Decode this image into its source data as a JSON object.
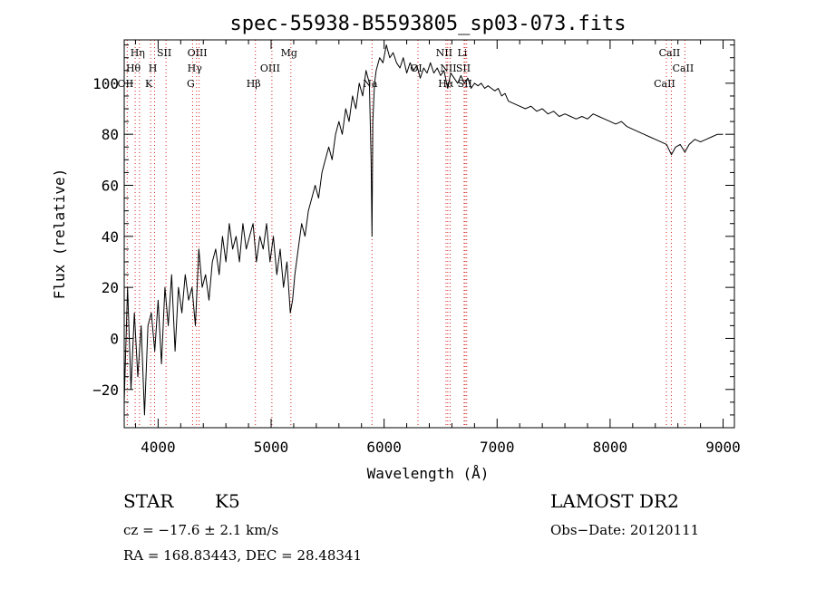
{
  "chart_data": {
    "type": "line",
    "title": "spec-55938-B5593805_sp03-073.fits",
    "xlabel": "Wavelength (Å)",
    "ylabel": "Flux (relative)",
    "xlim": [
      3700,
      9100
    ],
    "ylim": [
      -35,
      117
    ],
    "x_ticks": [
      4000,
      5000,
      6000,
      7000,
      8000,
      9000
    ],
    "y_ticks": [
      -20,
      0,
      20,
      40,
      60,
      80,
      100
    ],
    "grid": false,
    "line_color": "#000000",
    "marker_color": "#d62020",
    "series": [
      {
        "x": [
          3700,
          3730,
          3760,
          3790,
          3820,
          3850,
          3880,
          3910,
          3940,
          3970,
          4000,
          4030,
          4060,
          4090,
          4120,
          4150,
          4180,
          4210,
          4240,
          4270,
          4300,
          4330,
          4360,
          4390,
          4420,
          4450,
          4480,
          4510,
          4540,
          4570,
          4600,
          4630,
          4660,
          4690,
          4720,
          4750,
          4780,
          4810,
          4840,
          4870,
          4900,
          4930,
          4960,
          4990,
          5020,
          5050,
          5080,
          5110,
          5140,
          5170,
          5190,
          5210,
          5240,
          5270,
          5300,
          5330,
          5360,
          5390,
          5420,
          5450,
          5480,
          5510,
          5540,
          5570,
          5600,
          5630,
          5660,
          5690,
          5720,
          5750,
          5780,
          5810,
          5840,
          5870,
          5885,
          5893,
          5900,
          5915,
          5930,
          5960,
          5990,
          6020,
          6050,
          6080,
          6110,
          6140,
          6170,
          6200,
          6230,
          6260,
          6290,
          6320,
          6350,
          6380,
          6410,
          6440,
          6470,
          6500,
          6530,
          6563,
          6590,
          6620,
          6650,
          6680,
          6710,
          6740,
          6770,
          6800,
          6830,
          6860,
          6890,
          6920,
          6950,
          6980,
          7010,
          7040,
          7070,
          7100,
          7150,
          7200,
          7250,
          7300,
          7350,
          7400,
          7450,
          7500,
          7550,
          7600,
          7650,
          7700,
          7750,
          7800,
          7850,
          7900,
          7950,
          8000,
          8050,
          8100,
          8150,
          8200,
          8250,
          8300,
          8350,
          8400,
          8450,
          8500,
          8542,
          8580,
          8620,
          8662,
          8700,
          8750,
          8800,
          8850,
          8900,
          8950,
          9000
        ],
        "y": [
          -25,
          20,
          -20,
          10,
          -15,
          5,
          -30,
          5,
          10,
          -5,
          15,
          -10,
          20,
          5,
          25,
          -5,
          20,
          10,
          25,
          15,
          20,
          5,
          35,
          20,
          25,
          15,
          30,
          35,
          25,
          40,
          30,
          45,
          35,
          40,
          30,
          45,
          35,
          40,
          45,
          30,
          40,
          35,
          45,
          30,
          40,
          25,
          35,
          20,
          30,
          10,
          15,
          25,
          35,
          45,
          40,
          50,
          55,
          60,
          55,
          65,
          70,
          75,
          70,
          80,
          85,
          80,
          90,
          85,
          95,
          90,
          100,
          95,
          105,
          100,
          70,
          40,
          85,
          100,
          105,
          110,
          108,
          115,
          110,
          112,
          108,
          106,
          110,
          104,
          108,
          105,
          107,
          102,
          106,
          104,
          108,
          104,
          106,
          103,
          105,
          98,
          104,
          102,
          100,
          103,
          100,
          102,
          98,
          100,
          99,
          100,
          98,
          99,
          98,
          97,
          98,
          95,
          96,
          93,
          92,
          91,
          90,
          91,
          89,
          90,
          88,
          89,
          87,
          88,
          87,
          86,
          87,
          86,
          88,
          87,
          86,
          85,
          84,
          85,
          83,
          82,
          81,
          80,
          79,
          78,
          77,
          76,
          72,
          75,
          76,
          73,
          76,
          78,
          77,
          78,
          79,
          80,
          80
        ]
      }
    ],
    "lines": [
      {
        "label": "Hη",
        "x": 3835,
        "row": 0
      },
      {
        "label": "Hθ",
        "x": 3797,
        "row": 1
      },
      {
        "label": "OII",
        "x": 3727,
        "row": 2
      },
      {
        "label": "SII",
        "x": 4070,
        "row": 0
      },
      {
        "label": "H",
        "x": 3969,
        "row": 1
      },
      {
        "label": "K",
        "x": 3934,
        "row": 2
      },
      {
        "label": "OIII",
        "x": 4363,
        "row": 0
      },
      {
        "label": "Hγ",
        "x": 4340,
        "row": 1
      },
      {
        "label": "G",
        "x": 4305,
        "row": 2
      },
      {
        "label": "Mg",
        "x": 5175,
        "row": 0
      },
      {
        "label": "OIII",
        "x": 5007,
        "row": 1
      },
      {
        "label": "Hβ",
        "x": 4861,
        "row": 2
      },
      {
        "label": "Na",
        "x": 5893,
        "row": 2
      },
      {
        "label": "OI",
        "x": 6300,
        "row": 1
      },
      {
        "label": "NII",
        "x": 6548,
        "row": 0
      },
      {
        "label": "Li",
        "x": 6708,
        "row": 0
      },
      {
        "label": "NII",
        "x": 6584,
        "row": 1
      },
      {
        "label": "SII",
        "x": 6717,
        "row": 1
      },
      {
        "label": "Hα",
        "x": 6563,
        "row": 2
      },
      {
        "label": "SII",
        "x": 6731,
        "row": 2
      },
      {
        "label": "CaII",
        "x": 8542,
        "row": 0
      },
      {
        "label": "CaII",
        "x": 8662,
        "row": 1
      },
      {
        "label": "CaII",
        "x": 8498,
        "row": 2
      }
    ]
  },
  "info": {
    "class_label": "STAR",
    "subclass": "K5",
    "survey": "LAMOST DR2",
    "cz": "cz = −17.6 ± 2.1 km/s",
    "obs_date": "Obs−Date: 20120111",
    "radec": "RA = 168.83443, DEC =  28.48341"
  }
}
